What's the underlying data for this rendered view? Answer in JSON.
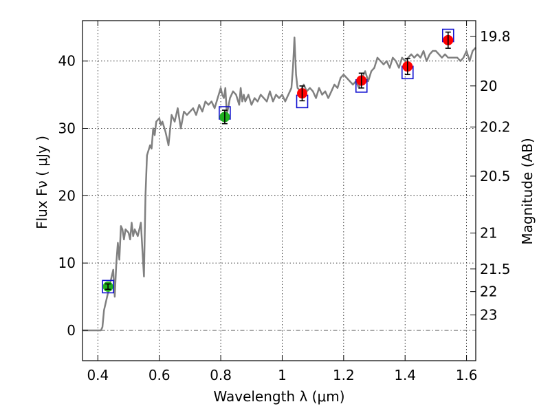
{
  "chart_data": {
    "type": "line",
    "xlabel": "Wavelength  λ (μm)",
    "ylabel": "Flux  Fν  ( μJy )",
    "y2label": "Magnitude (AB)",
    "xlim": [
      0.35,
      1.63
    ],
    "ylim": [
      -4.5,
      46
    ],
    "grid": true,
    "x_ticks": [
      0.4,
      0.6,
      0.8,
      1.0,
      1.2,
      1.4,
      1.6
    ],
    "x_tick_labels": [
      "0.4",
      "0.6",
      "0.8",
      "1",
      "1.2",
      "1.4",
      "1.6"
    ],
    "y_ticks": [
      0,
      10,
      20,
      30,
      40
    ],
    "y_tick_labels": [
      "0",
      "10",
      "20",
      "30",
      "40"
    ],
    "mag_ticks": [
      19.8,
      20,
      20.2,
      20.5,
      21,
      21.5,
      22,
      23
    ],
    "mag_tick_labels": [
      "19.8",
      "20",
      "20.2",
      "20.5",
      "21",
      "21.5",
      "22",
      "23"
    ],
    "colors": {
      "model": "#808080",
      "model_points": "#1010d0",
      "green_points": "#20b020",
      "red_points": "#ff0000",
      "errorbar": "#000000",
      "zero_line": "#555555"
    },
    "series": [
      {
        "name": "model-spectrum",
        "x": [
          0.35,
          0.41,
          0.415,
          0.42,
          0.43,
          0.44,
          0.45,
          0.455,
          0.46,
          0.465,
          0.47,
          0.475,
          0.48,
          0.485,
          0.49,
          0.5,
          0.505,
          0.51,
          0.515,
          0.52,
          0.53,
          0.54,
          0.545,
          0.55,
          0.555,
          0.56,
          0.57,
          0.575,
          0.58,
          0.585,
          0.59,
          0.6,
          0.605,
          0.61,
          0.62,
          0.63,
          0.64,
          0.65,
          0.66,
          0.67,
          0.68,
          0.69,
          0.7,
          0.71,
          0.72,
          0.73,
          0.74,
          0.75,
          0.76,
          0.77,
          0.78,
          0.79,
          0.8,
          0.805,
          0.81,
          0.815,
          0.82,
          0.83,
          0.84,
          0.85,
          0.86,
          0.865,
          0.87,
          0.875,
          0.88,
          0.89,
          0.9,
          0.91,
          0.92,
          0.93,
          0.94,
          0.95,
          0.96,
          0.97,
          0.98,
          0.99,
          1.0,
          1.01,
          1.02,
          1.03,
          1.035,
          1.04,
          1.045,
          1.05,
          1.06,
          1.07,
          1.08,
          1.09,
          1.1,
          1.11,
          1.12,
          1.13,
          1.14,
          1.15,
          1.16,
          1.17,
          1.18,
          1.19,
          1.2,
          1.21,
          1.22,
          1.23,
          1.24,
          1.25,
          1.26,
          1.27,
          1.28,
          1.29,
          1.3,
          1.31,
          1.32,
          1.33,
          1.34,
          1.35,
          1.36,
          1.37,
          1.38,
          1.39,
          1.4,
          1.41,
          1.42,
          1.43,
          1.44,
          1.45,
          1.46,
          1.47,
          1.48,
          1.49,
          1.5,
          1.51,
          1.52,
          1.53,
          1.54,
          1.55,
          1.56,
          1.57,
          1.58,
          1.59,
          1.6,
          1.61,
          1.62,
          1.63
        ],
        "values": [
          0,
          0,
          0.5,
          3,
          5,
          7,
          9,
          5,
          10,
          13,
          10.5,
          15.5,
          15,
          13.5,
          15,
          14.5,
          13.5,
          16,
          14,
          15,
          14,
          16,
          12,
          8,
          20,
          26,
          27.5,
          27,
          30,
          29,
          31,
          31.5,
          30.5,
          31,
          29.5,
          27.5,
          32,
          31,
          33,
          30,
          32.5,
          32,
          32.5,
          33,
          32,
          33.5,
          32.5,
          34,
          33.5,
          34,
          33,
          34.5,
          36,
          35,
          34.5,
          36,
          32,
          34.5,
          35.5,
          35,
          33.5,
          36,
          34,
          35,
          34,
          35,
          33.5,
          34.5,
          34,
          35,
          34.5,
          34,
          35.5,
          34,
          35,
          34.5,
          35,
          34,
          35,
          36,
          39,
          43.5,
          38,
          36,
          35.5,
          36.5,
          35.5,
          36,
          35.5,
          34.5,
          36,
          35,
          35.5,
          34.5,
          35.5,
          36.5,
          36,
          37.5,
          38,
          37.5,
          37,
          36.5,
          37,
          36,
          37.5,
          38.5,
          37,
          38.5,
          39,
          40.5,
          40,
          39.5,
          40,
          39,
          40.5,
          40,
          39,
          40.5,
          40,
          40.5,
          41,
          40.5,
          41,
          40.5,
          41.5,
          40,
          41,
          41.5,
          41.5,
          41,
          40.5,
          41,
          40.5,
          40.5,
          40.5,
          40.5,
          40,
          40.5,
          41.5,
          40,
          41.5,
          42
        ]
      },
      {
        "name": "model-photometry",
        "x": [
          0.433,
          0.813,
          1.065,
          1.258,
          1.408,
          1.54
        ],
        "values": [
          6.5,
          32.3,
          34,
          36.3,
          38.3,
          43.8
        ]
      },
      {
        "name": "observed-green",
        "x": [
          0.433,
          0.813
        ],
        "values": [
          6.5,
          31.7
        ],
        "errors": [
          0.4,
          1.0
        ]
      },
      {
        "name": "observed-red",
        "x": [
          1.065,
          1.258,
          1.408,
          1.54
        ],
        "values": [
          35.2,
          37.1,
          39.2,
          43.1
        ],
        "errors": [
          1.1,
          1.1,
          1.2,
          1.2
        ]
      }
    ]
  }
}
